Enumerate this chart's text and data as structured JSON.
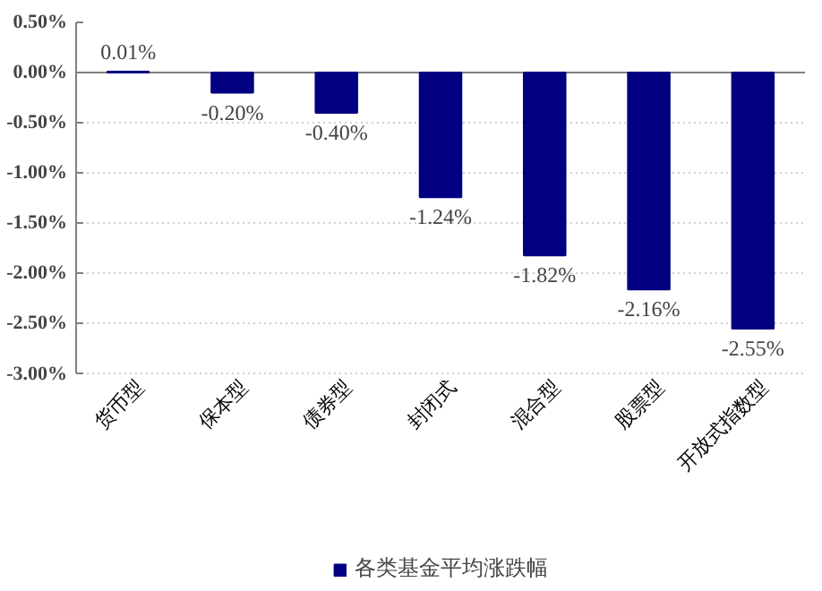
{
  "chart_data": {
    "type": "bar",
    "categories": [
      "货币型",
      "保本型",
      "债券型",
      "封闭式",
      "混合型",
      "股票型",
      "开放式指数型"
    ],
    "series": [
      {
        "name": "各类基金平均涨跌幅",
        "color": "#000080",
        "values": [
          0.01,
          -0.2,
          -0.4,
          -1.24,
          -1.82,
          -2.16,
          -2.55
        ]
      }
    ],
    "value_labels": [
      "0.01%",
      "-0.20%",
      "-0.40%",
      "-1.24%",
      "-1.82%",
      "-2.16%",
      "-2.55%"
    ],
    "ylim": [
      -3.0,
      0.5
    ],
    "yticks": [
      {
        "value": -3.0,
        "label": "-3.00%"
      },
      {
        "value": -2.5,
        "label": "-2.50%"
      },
      {
        "value": -2.0,
        "label": "-2.00%"
      },
      {
        "value": -1.5,
        "label": "-1.50%"
      },
      {
        "value": -1.0,
        "label": "-1.00%"
      },
      {
        "value": -0.5,
        "label": "-0.50%"
      },
      {
        "value": 0.0,
        "label": "0.00%"
      },
      {
        "value": 0.5,
        "label": "0.50%"
      }
    ],
    "grid": "y",
    "legend": "bottom"
  }
}
